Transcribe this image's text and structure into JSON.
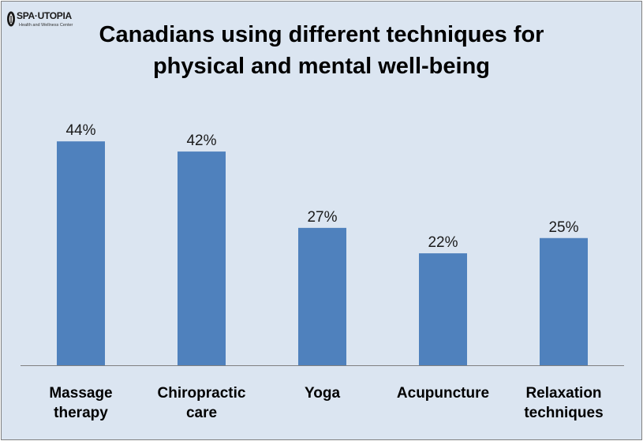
{
  "logo": {
    "name": "SPA·UTOPIA",
    "tagline": "Health and Wellness Center"
  },
  "chart_data": {
    "type": "bar",
    "title_lines": [
      "Canadians using different techniques for",
      "physical and mental well-being"
    ],
    "categories": [
      [
        "Massage",
        "therapy"
      ],
      [
        "Chiropractic",
        "care"
      ],
      [
        "Yoga"
      ],
      [
        "Acupuncture"
      ],
      [
        "Relaxation",
        "techniques"
      ]
    ],
    "values": [
      44,
      42,
      27,
      22,
      25
    ],
    "value_labels": [
      "44%",
      "42%",
      "27%",
      "22%",
      "25%"
    ],
    "xlabel": "",
    "ylabel": "",
    "ylim": [
      0,
      50
    ],
    "grid": false,
    "legend": "none",
    "colors": {
      "bar": "#4f81bd",
      "background": "#dbe5f1"
    }
  }
}
